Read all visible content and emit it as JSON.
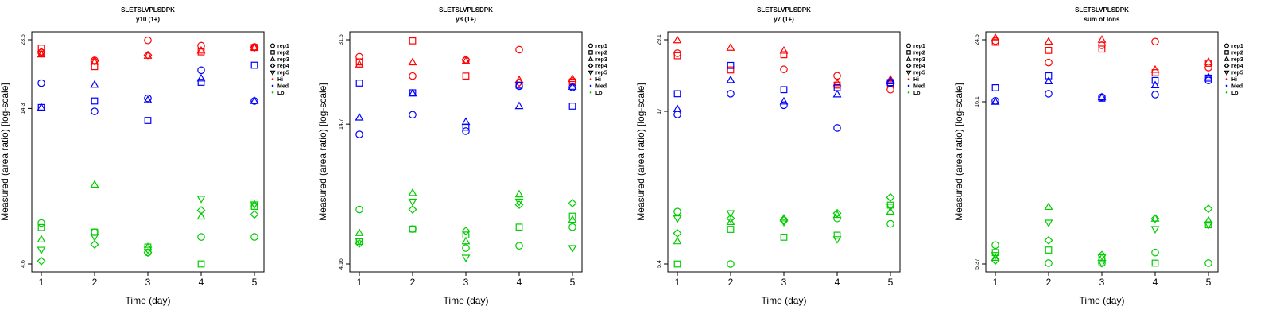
{
  "symbol_legend": [
    {
      "label": "rep1",
      "shape": "circle"
    },
    {
      "label": "rep2",
      "shape": "square"
    },
    {
      "label": "rep3",
      "shape": "triangle-up"
    },
    {
      "label": "rep4",
      "shape": "diamond"
    },
    {
      "label": "rep5",
      "shape": "triangle-down"
    }
  ],
  "color_legend": [
    {
      "label": "Hi",
      "color": "#ff0000"
    },
    {
      "label": "Med",
      "color": "#0000ff"
    },
    {
      "label": "Lo",
      "color": "#00cc00"
    }
  ],
  "xlabel": "Time (day)",
  "ylabel": "Measured (area ratio) [log-scale]",
  "chart_data": [
    {
      "type": "scatter",
      "title": "SLETSLVPLSDPK",
      "subtitle": "y10 (1+)",
      "x_ticks": [
        1,
        2,
        3,
        4,
        5
      ],
      "y_ticks": [
        "4.6",
        "14.3",
        "23.6"
      ],
      "y_tick_values": [
        4.6,
        14.3,
        23.6
      ],
      "ylim": [
        4.6,
        23.6
      ],
      "log_y": true,
      "series": [
        {
          "group": "Hi",
          "replicate": "rep1",
          "values": [
            21.5,
            20.3,
            23.5,
            22.6,
            22.4
          ]
        },
        {
          "group": "Hi",
          "replicate": "rep2",
          "values": [
            22.2,
            19.4,
            null,
            21.6,
            22.3
          ]
        },
        {
          "group": "Hi",
          "replicate": "rep3",
          "values": [
            21.2,
            20.1,
            21.0,
            21.8,
            22.3
          ]
        },
        {
          "group": "Hi",
          "replicate": "rep4",
          "values": [
            21.6,
            20.2,
            21.1,
            null,
            22.3
          ]
        },
        {
          "group": "Med",
          "replicate": "rep1",
          "values": [
            17.2,
            14.0,
            15.4,
            18.9,
            15.1
          ]
        },
        {
          "group": "Med",
          "replicate": "rep2",
          "values": [
            14.4,
            15.1,
            13.1,
            17.3,
            19.6
          ]
        },
        {
          "group": "Med",
          "replicate": "rep3",
          "values": [
            14.4,
            17.0,
            15.2,
            17.8,
            15.1
          ]
        },
        {
          "group": "Lo",
          "replicate": "rep1",
          "values": [
            6.2,
            5.8,
            5.0,
            5.6,
            5.6
          ]
        },
        {
          "group": "Lo",
          "replicate": "rep2",
          "values": [
            6.0,
            5.8,
            5.2,
            4.6,
            7.0
          ]
        },
        {
          "group": "Lo",
          "replicate": "rep3",
          "values": [
            5.5,
            8.2,
            5.2,
            6.5,
            7.1
          ]
        },
        {
          "group": "Lo",
          "replicate": "rep4",
          "values": [
            4.7,
            5.3,
            5.0,
            6.8,
            6.6
          ]
        },
        {
          "group": "Lo",
          "replicate": "rep5",
          "values": [
            5.1,
            5.6,
            5.1,
            7.4,
            7.1
          ]
        }
      ]
    },
    {
      "type": "scatter",
      "title": "SLETSLVPLSDPK",
      "subtitle": "y8 (1+)",
      "x_ticks": [
        1,
        2,
        3,
        4,
        5
      ],
      "y_ticks": [
        "4.16",
        "14.7",
        "31.5"
      ],
      "y_tick_values": [
        4.16,
        14.7,
        31.5
      ],
      "ylim": [
        4.16,
        31.5
      ],
      "log_y": true,
      "series": [
        {
          "group": "Hi",
          "replicate": "rep1",
          "values": [
            27.0,
            22.7,
            26.2,
            28.8,
            21.7
          ]
        },
        {
          "group": "Hi",
          "replicate": "rep2",
          "values": [
            25.8,
            31.2,
            22.7,
            20.9,
            21.5
          ]
        },
        {
          "group": "Hi",
          "replicate": "rep3",
          "values": [
            25.2,
            25.7,
            26.0,
            21.9,
            22.1
          ]
        },
        {
          "group": "Hi",
          "replicate": "rep4",
          "values": [
            null,
            null,
            26.3,
            21.4,
            null
          ]
        },
        {
          "group": "Med",
          "replicate": "rep1",
          "values": [
            13.4,
            16.0,
            13.8,
            20.7,
            20.5
          ]
        },
        {
          "group": "Med",
          "replicate": "rep2",
          "values": [
            21.3,
            19.5,
            14.3,
            20.9,
            17.3
          ]
        },
        {
          "group": "Med",
          "replicate": "rep3",
          "values": [
            15.6,
            19.4,
            15.0,
            17.3,
            20.6
          ]
        },
        {
          "group": "Lo",
          "replicate": "rep1",
          "values": [
            6.8,
            5.7,
            4.8,
            4.9,
            5.8
          ]
        },
        {
          "group": "Lo",
          "replicate": "rep2",
          "values": [
            5.1,
            5.7,
            5.4,
            5.8,
            6.4
          ]
        },
        {
          "group": "Lo",
          "replicate": "rep3",
          "values": [
            5.5,
            7.9,
            5.1,
            7.8,
            6.2
          ]
        },
        {
          "group": "Lo",
          "replicate": "rep4",
          "values": [
            5.0,
            6.8,
            5.6,
            7.1,
            7.2
          ]
        },
        {
          "group": "Lo",
          "replicate": "rep5",
          "values": [
            5.1,
            7.3,
            4.4,
            7.3,
            4.8
          ]
        }
      ]
    },
    {
      "type": "scatter",
      "title": "SLETSLVPLSDPK",
      "subtitle": "y7 (1+)",
      "x_ticks": [
        1,
        2,
        3,
        4,
        5
      ],
      "y_ticks": [
        "5.4",
        "17",
        "29.1"
      ],
      "y_tick_values": [
        5.4,
        17,
        29.1
      ],
      "ylim": [
        5.4,
        29.1
      ],
      "log_y": true,
      "series": [
        {
          "group": "Hi",
          "replicate": "rep1",
          "values": [
            26.3,
            null,
            23.3,
            22.2,
            20.0
          ]
        },
        {
          "group": "Hi",
          "replicate": "rep2",
          "values": [
            25.8,
            23.2,
            26.0,
            20.7,
            20.9
          ]
        },
        {
          "group": "Hi",
          "replicate": "rep3",
          "values": [
            29.0,
            27.4,
            26.8,
            21.0,
            21.6
          ]
        },
        {
          "group": "Med",
          "replicate": "rep1",
          "values": [
            16.6,
            19.4,
            17.8,
            15.0,
            21.0
          ]
        },
        {
          "group": "Med",
          "replicate": "rep2",
          "values": [
            19.4,
            24.0,
            20.0,
            20.3,
            21.1
          ]
        },
        {
          "group": "Med",
          "replicate": "rep3",
          "values": [
            17.3,
            21.5,
            18.3,
            19.3,
            21.3
          ]
        },
        {
          "group": "Lo",
          "replicate": "rep1",
          "values": [
            8.0,
            5.4,
            7.5,
            7.6,
            7.3
          ]
        },
        {
          "group": "Lo",
          "replicate": "rep2",
          "values": [
            5.4,
            7.0,
            6.6,
            6.7,
            8.4
          ]
        },
        {
          "group": "Lo",
          "replicate": "rep3",
          "values": [
            6.4,
            7.4,
            7.6,
            7.8,
            8.0
          ]
        },
        {
          "group": "Lo",
          "replicate": "rep4",
          "values": [
            6.8,
            7.6,
            7.5,
            7.9,
            8.9
          ]
        },
        {
          "group": "Lo",
          "replicate": "rep5",
          "values": [
            7.6,
            7.9,
            7.4,
            6.5,
            8.3
          ]
        }
      ]
    },
    {
      "type": "scatter",
      "title": "SLETSLVPLSDPK",
      "subtitle": "sum of Ions",
      "x_ticks": [
        1,
        2,
        3,
        4,
        5
      ],
      "y_ticks": [
        "5.37",
        "16.1",
        "24.5"
      ],
      "y_tick_values": [
        5.37,
        16.1,
        24.5
      ],
      "ylim": [
        5.37,
        24.5
      ],
      "log_y": true,
      "series": [
        {
          "group": "Hi",
          "replicate": "rep1",
          "values": [
            24.3,
            21.0,
            23.6,
            24.2,
            20.3
          ]
        },
        {
          "group": "Hi",
          "replicate": "rep2",
          "values": [
            24.1,
            22.8,
            23.0,
            19.6,
            20.9
          ]
        },
        {
          "group": "Hi",
          "replicate": "rep3",
          "values": [
            24.8,
            24.2,
            24.5,
            20.0,
            21.1
          ]
        },
        {
          "group": "Med",
          "replicate": "rep1",
          "values": [
            16.2,
            17.0,
            16.6,
            16.9,
            18.6
          ]
        },
        {
          "group": "Med",
          "replicate": "rep2",
          "values": [
            17.7,
            19.2,
            16.5,
            18.6,
            18.9
          ]
        },
        {
          "group": "Med",
          "replicate": "rep3",
          "values": [
            16.1,
            18.5,
            16.6,
            18.0,
            19.0
          ]
        },
        {
          "group": "Lo",
          "replicate": "rep1",
          "values": [
            6.1,
            5.4,
            5.4,
            5.8,
            5.4
          ]
        },
        {
          "group": "Lo",
          "replicate": "rep2",
          "values": [
            5.8,
            5.9,
            5.6,
            5.4,
            7.0
          ]
        },
        {
          "group": "Lo",
          "replicate": "rep3",
          "values": [
            5.6,
            7.9,
            5.6,
            7.3,
            7.2
          ]
        },
        {
          "group": "Lo",
          "replicate": "rep4",
          "values": [
            5.5,
            6.3,
            5.7,
            7.3,
            7.8
          ]
        },
        {
          "group": "Lo",
          "replicate": "rep5",
          "values": [
            5.7,
            7.1,
            5.4,
            6.8,
            7.0
          ]
        }
      ]
    }
  ]
}
